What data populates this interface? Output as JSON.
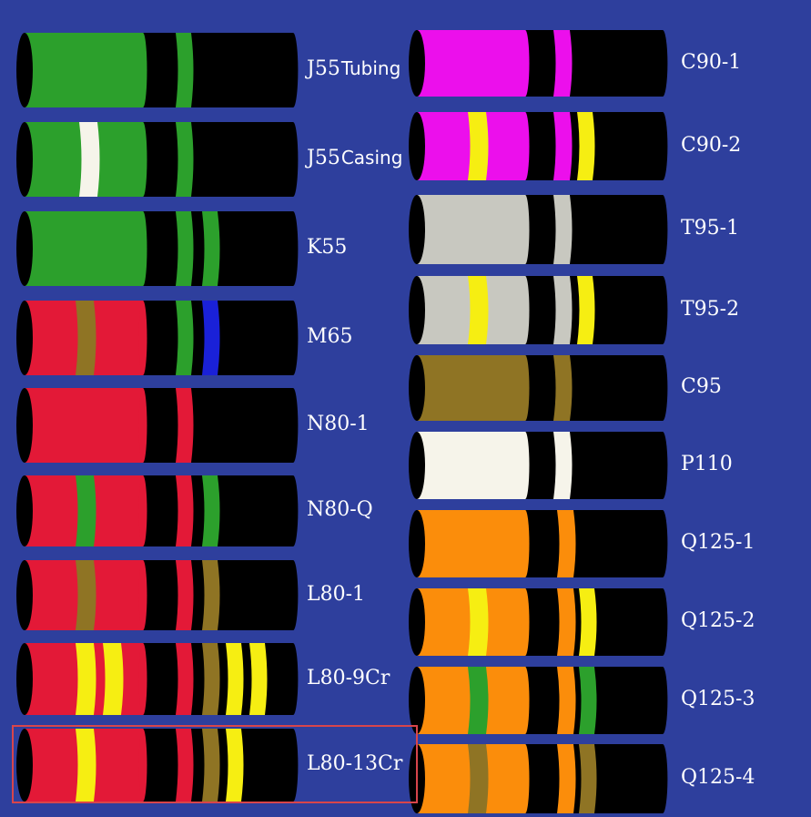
{
  "colors": {
    "background": "#2E3F9D",
    "black": "#000000",
    "green": "#2CA02C",
    "white": "#F6F4EA",
    "red": "#E31937",
    "brown": "#8F7424",
    "blue": "#1A21D8",
    "yellow": "#F6EE12",
    "magenta": "#EC0FEC",
    "gray": "#C8C8C0",
    "orange": "#FB8D0B",
    "highlight": "#D8454B"
  },
  "left_column": [
    {
      "grade": "J55",
      "suffix": "Tubing",
      "body": "green",
      "body_bands": [],
      "coupling_bands": [
        "green"
      ]
    },
    {
      "grade": "J55",
      "suffix": "Casing",
      "body": "green",
      "body_bands": [
        "white"
      ],
      "coupling_bands": [
        "green"
      ]
    },
    {
      "grade": "K55",
      "suffix": "",
      "body": "green",
      "body_bands": [],
      "coupling_bands": [
        "green",
        "green"
      ]
    },
    {
      "grade": "M65",
      "suffix": "",
      "body": "red",
      "body_bands": [
        "brown"
      ],
      "coupling_bands": [
        "green",
        "blue"
      ]
    },
    {
      "grade": "N80-1",
      "suffix": "",
      "body": "red",
      "body_bands": [],
      "coupling_bands": [
        "red"
      ]
    },
    {
      "grade": "N80-Q",
      "suffix": "",
      "body": "red",
      "body_bands": [
        "green"
      ],
      "coupling_bands": [
        "red",
        "green"
      ]
    },
    {
      "grade": "L80-1",
      "suffix": "",
      "body": "red",
      "body_bands": [
        "brown"
      ],
      "coupling_bands": [
        "red",
        "brown"
      ]
    },
    {
      "grade": "L80-9Cr",
      "suffix": "",
      "body": "red",
      "body_bands": [
        "yellow",
        "yellow"
      ],
      "coupling_bands": [
        "red",
        "brown",
        "yellow",
        "yellow"
      ]
    },
    {
      "grade": "L80-13Cr",
      "suffix": "",
      "body": "red",
      "body_bands": [
        "yellow"
      ],
      "coupling_bands": [
        "red",
        "brown",
        "yellow"
      ],
      "highlighted": true
    }
  ],
  "right_column": [
    {
      "grade": "C90-1",
      "suffix": "",
      "body": "magenta",
      "body_bands": [],
      "coupling_bands": [
        "magenta"
      ]
    },
    {
      "grade": "C90-2",
      "suffix": "",
      "body": "magenta",
      "body_bands": [
        "yellow"
      ],
      "coupling_bands": [
        "magenta",
        "yellow"
      ]
    },
    {
      "grade": "T95-1",
      "suffix": "",
      "body": "gray",
      "body_bands": [],
      "coupling_bands": [
        "gray"
      ]
    },
    {
      "grade": "T95-2",
      "suffix": "",
      "body": "gray",
      "body_bands": [
        "yellow"
      ],
      "coupling_bands": [
        "gray",
        "yellow"
      ]
    },
    {
      "grade": "C95",
      "suffix": "",
      "body": "brown",
      "body_bands": [],
      "coupling_bands": [
        "brown"
      ]
    },
    {
      "grade": "P110",
      "suffix": "",
      "body": "white",
      "body_bands": [],
      "coupling_bands": [
        "white"
      ]
    },
    {
      "grade": "Q125-1",
      "suffix": "",
      "body": "orange",
      "body_bands": [],
      "coupling_bands": [
        "orange"
      ]
    },
    {
      "grade": "Q125-2",
      "suffix": "",
      "body": "orange",
      "body_bands": [
        "yellow"
      ],
      "coupling_bands": [
        "orange",
        "yellow"
      ]
    },
    {
      "grade": "Q125-3",
      "suffix": "",
      "body": "orange",
      "body_bands": [
        "green"
      ],
      "coupling_bands": [
        "orange",
        "green"
      ]
    },
    {
      "grade": "Q125-4",
      "suffix": "",
      "body": "orange",
      "body_bands": [
        "brown"
      ],
      "coupling_bands": [
        "orange",
        "brown"
      ]
    }
  ]
}
